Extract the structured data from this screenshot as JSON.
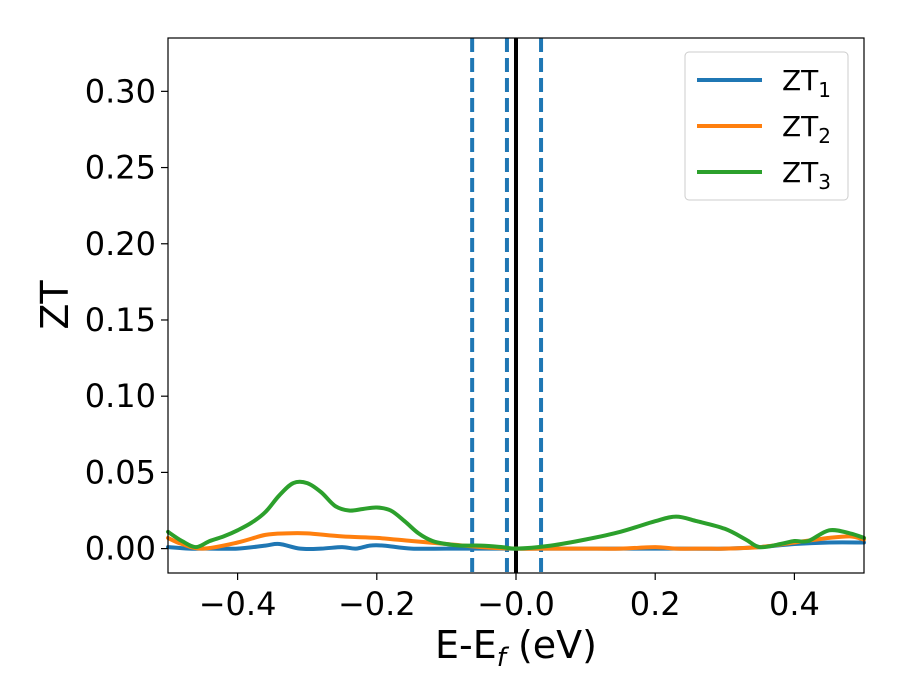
{
  "chart_data": {
    "type": "line",
    "xlabel": "E-E",
    "xlabel_sub": "f",
    "xlabel_unit": " (eV)",
    "ylabel": "ZT",
    "xlim": [
      -0.5,
      0.5
    ],
    "ylim": [
      -0.016,
      0.335
    ],
    "xticks": [
      -0.4,
      -0.2,
      0.0,
      0.2,
      0.4
    ],
    "xtick_labels": [
      "−0.4",
      "−0.2",
      "−0.0",
      "0.2",
      "0.4"
    ],
    "yticks": [
      0.0,
      0.05,
      0.1,
      0.15,
      0.2,
      0.25,
      0.3
    ],
    "ytick_labels": [
      "0.00",
      "0.05",
      "0.10",
      "0.15",
      "0.20",
      "0.25",
      "0.30"
    ],
    "grid": false,
    "legend_position": "top-right",
    "vlines": [
      {
        "x": 0.0,
        "style": "solid",
        "color": "#000000"
      },
      {
        "x": -0.063,
        "style": "dashed",
        "color": "#1f77b4"
      },
      {
        "x": -0.013,
        "style": "dashed",
        "color": "#1f77b4"
      },
      {
        "x": 0.036,
        "style": "dashed",
        "color": "#1f77b4"
      }
    ],
    "series": [
      {
        "name": "ZT",
        "name_sub": "1",
        "color": "#1f77b4",
        "x": [
          -0.5,
          -0.47,
          -0.44,
          -0.4,
          -0.36,
          -0.34,
          -0.31,
          -0.28,
          -0.25,
          -0.23,
          -0.21,
          -0.19,
          -0.15,
          -0.1,
          -0.05,
          0.0,
          0.05,
          0.1,
          0.2,
          0.3,
          0.35,
          0.4,
          0.45,
          0.5
        ],
        "y": [
          0.001,
          0.0,
          0.0,
          0.0,
          0.002,
          0.003,
          0.0,
          0.0,
          0.001,
          0.0,
          0.002,
          0.002,
          0.0,
          0.0,
          0.0,
          0.0,
          0.0,
          0.0,
          0.0,
          0.0,
          0.001,
          0.003,
          0.004,
          0.004
        ]
      },
      {
        "name": "ZT",
        "name_sub": "2",
        "color": "#ff7f0e",
        "x": [
          -0.5,
          -0.48,
          -0.45,
          -0.4,
          -0.36,
          -0.33,
          -0.3,
          -0.25,
          -0.2,
          -0.15,
          -0.1,
          -0.05,
          0.0,
          0.05,
          0.1,
          0.15,
          0.2,
          0.23,
          0.27,
          0.3,
          0.35,
          0.4,
          0.45,
          0.48,
          0.5
        ],
        "y": [
          0.007,
          0.003,
          0.0,
          0.004,
          0.009,
          0.01,
          0.01,
          0.008,
          0.007,
          0.005,
          0.003,
          0.001,
          0.0,
          0.0,
          0.0,
          0.0,
          0.001,
          0.0,
          0.0,
          0.0,
          0.001,
          0.004,
          0.007,
          0.008,
          0.006
        ]
      },
      {
        "name": "ZT",
        "name_sub": "3",
        "color": "#2ca02c",
        "x": [
          -0.5,
          -0.48,
          -0.46,
          -0.44,
          -0.42,
          -0.4,
          -0.38,
          -0.36,
          -0.34,
          -0.32,
          -0.3,
          -0.28,
          -0.26,
          -0.24,
          -0.22,
          -0.2,
          -0.18,
          -0.16,
          -0.14,
          -0.12,
          -0.1,
          -0.08,
          -0.05,
          -0.02,
          0.0,
          0.05,
          0.1,
          0.15,
          0.2,
          0.23,
          0.26,
          0.3,
          0.33,
          0.35,
          0.38,
          0.4,
          0.42,
          0.45,
          0.48,
          0.5
        ],
        "y": [
          0.011,
          0.005,
          0.001,
          0.005,
          0.008,
          0.012,
          0.017,
          0.024,
          0.035,
          0.043,
          0.043,
          0.037,
          0.028,
          0.025,
          0.026,
          0.027,
          0.025,
          0.018,
          0.01,
          0.005,
          0.003,
          0.002,
          0.002,
          0.001,
          0.0,
          0.002,
          0.006,
          0.011,
          0.018,
          0.021,
          0.018,
          0.013,
          0.006,
          0.001,
          0.003,
          0.005,
          0.005,
          0.012,
          0.01,
          0.007
        ]
      }
    ]
  }
}
